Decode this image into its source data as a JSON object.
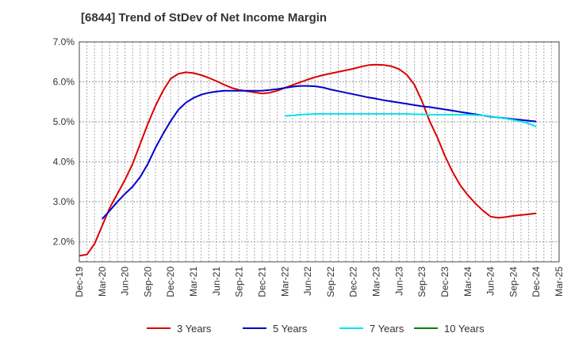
{
  "chart_data": {
    "type": "line",
    "title": "[6844]  Trend of StDev of Net Income Margin",
    "xlabel": "",
    "ylabel": "",
    "ylim": [
      1.5,
      7.0
    ],
    "yticks": [
      "2.0%",
      "3.0%",
      "4.0%",
      "5.0%",
      "6.0%",
      "7.0%"
    ],
    "ytick_values": [
      2.0,
      3.0,
      4.0,
      5.0,
      6.0,
      7.0
    ],
    "x_range": [
      "Dec-19",
      "Mar-25"
    ],
    "xticks": [
      "Dec-19",
      "Mar-20",
      "Jun-20",
      "Sep-20",
      "Dec-20",
      "Mar-21",
      "Jun-21",
      "Sep-21",
      "Dec-21",
      "Mar-22",
      "Jun-22",
      "Sep-22",
      "Dec-22",
      "Mar-23",
      "Jun-23",
      "Sep-23",
      "Dec-23",
      "Mar-24",
      "Jun-24",
      "Sep-24",
      "Dec-24",
      "Mar-25"
    ],
    "grid": true,
    "legend": "bottom",
    "series": [
      {
        "name": "3 Years",
        "color": "#dd0000",
        "x": [
          "Dec-19",
          "Jan-20",
          "Feb-20",
          "Mar-20",
          "Apr-20",
          "May-20",
          "Jun-20",
          "Jul-20",
          "Aug-20",
          "Sep-20",
          "Oct-20",
          "Nov-20",
          "Dec-20",
          "Jan-21",
          "Feb-21",
          "Mar-21",
          "Apr-21",
          "May-21",
          "Jun-21",
          "Jul-21",
          "Aug-21",
          "Sep-21",
          "Oct-21",
          "Nov-21",
          "Dec-21",
          "Jan-22",
          "Feb-22",
          "Mar-22",
          "Apr-22",
          "May-22",
          "Jun-22",
          "Jul-22",
          "Aug-22",
          "Sep-22",
          "Oct-22",
          "Nov-22",
          "Dec-22",
          "Jan-23",
          "Feb-23",
          "Mar-23",
          "Apr-23",
          "May-23",
          "Jun-23",
          "Jul-23",
          "Aug-23",
          "Sep-23",
          "Oct-23",
          "Nov-23",
          "Dec-23",
          "Jan-24",
          "Feb-24",
          "Mar-24",
          "Apr-24",
          "May-24",
          "Jun-24",
          "Jul-24",
          "Aug-24",
          "Sep-24",
          "Oct-24",
          "Nov-24",
          "Dec-24"
        ],
        "values": [
          1.65,
          1.68,
          1.95,
          2.4,
          2.85,
          3.2,
          3.55,
          3.95,
          4.45,
          4.95,
          5.4,
          5.78,
          6.08,
          6.2,
          6.24,
          6.22,
          6.17,
          6.1,
          6.02,
          5.93,
          5.85,
          5.8,
          5.77,
          5.74,
          5.71,
          5.73,
          5.78,
          5.85,
          5.92,
          5.99,
          6.06,
          6.12,
          6.17,
          6.21,
          6.25,
          6.29,
          6.33,
          6.38,
          6.42,
          6.43,
          6.42,
          6.39,
          6.32,
          6.18,
          5.93,
          5.52,
          5.02,
          4.62,
          4.15,
          3.75,
          3.42,
          3.17,
          2.96,
          2.78,
          2.63,
          2.6,
          2.62,
          2.65,
          2.67,
          2.69,
          2.71
        ]
      },
      {
        "name": "5 Years",
        "color": "#0000cc",
        "x": [
          "Mar-20",
          "Apr-20",
          "May-20",
          "Jun-20",
          "Jul-20",
          "Aug-20",
          "Sep-20",
          "Oct-20",
          "Nov-20",
          "Dec-20",
          "Jan-21",
          "Feb-21",
          "Mar-21",
          "Apr-21",
          "May-21",
          "Jun-21",
          "Jul-21",
          "Aug-21",
          "Sep-21",
          "Oct-21",
          "Nov-21",
          "Dec-21",
          "Jan-22",
          "Feb-22",
          "Mar-22",
          "Apr-22",
          "May-22",
          "Jun-22",
          "Jul-22",
          "Aug-22",
          "Sep-22",
          "Oct-22",
          "Nov-22",
          "Dec-22",
          "Jan-23",
          "Feb-23",
          "Mar-23",
          "Apr-23",
          "May-23",
          "Jun-23",
          "Jul-23",
          "Aug-23",
          "Sep-23",
          "Oct-23",
          "Nov-23",
          "Dec-23",
          "Jan-24",
          "Feb-24",
          "Mar-24",
          "Apr-24",
          "May-24",
          "Jun-24",
          "Jul-24",
          "Aug-24",
          "Sep-24",
          "Oct-24",
          "Nov-24",
          "Dec-24"
        ],
        "values": [
          2.57,
          2.78,
          3.0,
          3.2,
          3.38,
          3.62,
          3.95,
          4.35,
          4.7,
          5.02,
          5.3,
          5.48,
          5.6,
          5.68,
          5.73,
          5.76,
          5.78,
          5.78,
          5.78,
          5.78,
          5.78,
          5.78,
          5.8,
          5.82,
          5.85,
          5.88,
          5.9,
          5.9,
          5.89,
          5.86,
          5.81,
          5.77,
          5.73,
          5.69,
          5.65,
          5.61,
          5.58,
          5.54,
          5.51,
          5.48,
          5.45,
          5.42,
          5.39,
          5.37,
          5.34,
          5.31,
          5.28,
          5.25,
          5.22,
          5.19,
          5.16,
          5.13,
          5.11,
          5.09,
          5.07,
          5.05,
          5.03,
          5.01
        ]
      },
      {
        "name": "7 Years",
        "color": "#00e5ee",
        "x": [
          "Mar-22",
          "Apr-22",
          "May-22",
          "Jun-22",
          "Jul-22",
          "Aug-22",
          "Sep-22",
          "Oct-22",
          "Nov-22",
          "Dec-22",
          "Jan-23",
          "Feb-23",
          "Mar-23",
          "Apr-23",
          "May-23",
          "Jun-23",
          "Jul-23",
          "Aug-23",
          "Sep-23",
          "Oct-23",
          "Nov-23",
          "Dec-23",
          "Jan-24",
          "Feb-24",
          "Mar-24",
          "Apr-24",
          "May-24",
          "Jun-24",
          "Jul-24",
          "Aug-24",
          "Sep-24",
          "Oct-24",
          "Nov-24",
          "Dec-24"
        ],
        "values": [
          5.15,
          5.16,
          5.18,
          5.19,
          5.2,
          5.2,
          5.2,
          5.2,
          5.2,
          5.2,
          5.2,
          5.2,
          5.2,
          5.2,
          5.2,
          5.2,
          5.2,
          5.19,
          5.19,
          5.18,
          5.18,
          5.18,
          5.18,
          5.18,
          5.18,
          5.17,
          5.16,
          5.14,
          5.11,
          5.08,
          5.05,
          5.01,
          4.96,
          4.88
        ]
      },
      {
        "name": "10 Years",
        "color": "#008000",
        "x": [],
        "values": []
      }
    ]
  }
}
